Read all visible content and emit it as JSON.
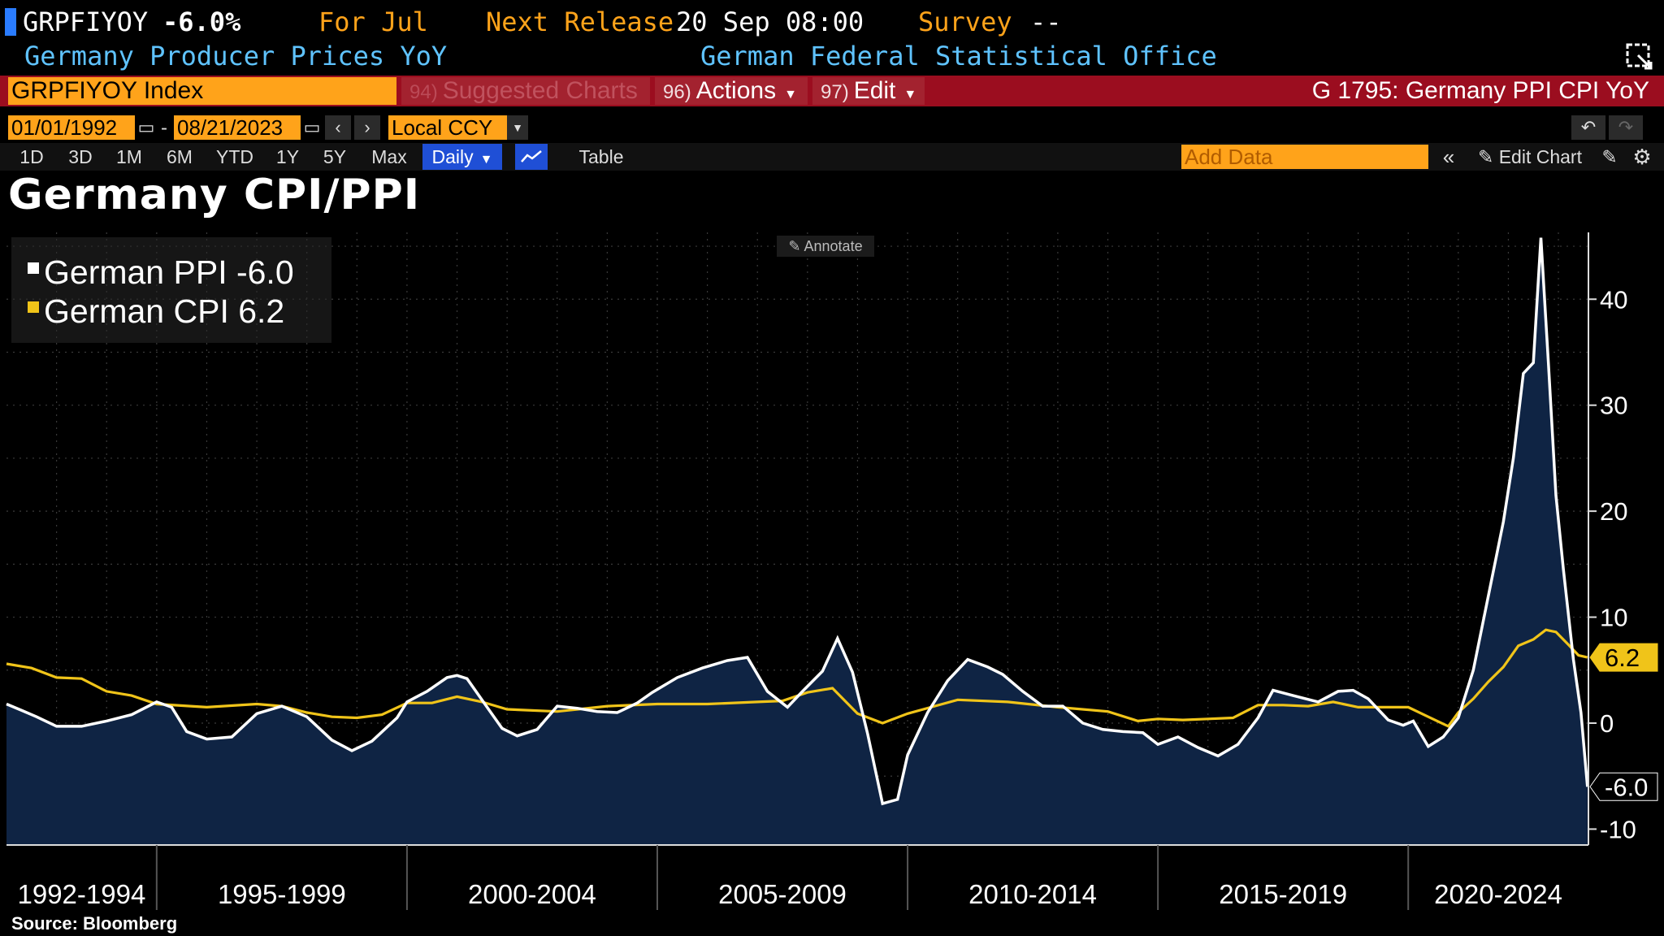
{
  "header": {
    "ticker": "GRPFIYOY",
    "value": "-6.0%",
    "for_label": "For Jul",
    "next_release_label": "Next Release",
    "next_release_value": "20 Sep 08:00",
    "survey_label": "Survey",
    "survey_value": "--",
    "description": "Germany Producer Prices YoY",
    "source_org": "German Federal Statistical Office"
  },
  "command_bar": {
    "security": "GRPFIYOY Index",
    "suggested_num": "94)",
    "suggested_label": "Suggested Charts",
    "actions_num": "96)",
    "actions_label": "Actions",
    "edit_num": "97)",
    "edit_label": "Edit",
    "chart_id": "G 1795: Germany PPI CPI YoY"
  },
  "date_row": {
    "start": "01/01/1992",
    "end": "08/21/2023",
    "separator": "-",
    "currency": "Local CCY"
  },
  "period_row": {
    "periods": [
      "1D",
      "3D",
      "1M",
      "6M",
      "YTD",
      "1Y",
      "5Y",
      "Max"
    ],
    "frequency": "Daily",
    "table_label": "Table",
    "add_data_placeholder": "Add Data",
    "edit_chart_label": "Edit Chart"
  },
  "colors": {
    "ppi": "#ffffff",
    "cpi": "#f0c419",
    "area": "#0f2444",
    "accent": "#ffa31a",
    "bar_red": "#9b0d1f"
  },
  "annotate_label": "Annotate",
  "source": "Source: Bloomberg",
  "chart_data": {
    "type": "line",
    "title": "Germany CPI/PPI",
    "x_range": [
      1992.0,
      2023.6
    ],
    "ylim": [
      -11.5,
      46
    ],
    "yticks": [
      -10,
      0,
      10,
      20,
      30,
      40
    ],
    "x_period_labels": [
      {
        "label": "1992-1994",
        "start": 1992.0,
        "end": 1995.0
      },
      {
        "label": "1995-1999",
        "start": 1995.0,
        "end": 2000.0
      },
      {
        "label": "2000-2004",
        "start": 2000.0,
        "end": 2005.0
      },
      {
        "label": "2005-2009",
        "start": 2005.0,
        "end": 2010.0
      },
      {
        "label": "2010-2014",
        "start": 2010.0,
        "end": 2015.0
      },
      {
        "label": "2015-2019",
        "start": 2015.0,
        "end": 2020.0
      },
      {
        "label": "2020-2024",
        "start": 2020.0,
        "end": 2023.6
      }
    ],
    "legend_position": "top-left",
    "series": [
      {
        "name": "German PPI",
        "last_label": "German PPI -6.0",
        "last_value": -6.0,
        "last_value_label": "-6.0",
        "color": "#ffffff",
        "filled": true,
        "points": [
          [
            1992.0,
            1.8
          ],
          [
            1992.3,
            1.2
          ],
          [
            1992.6,
            0.6
          ],
          [
            1993.0,
            -0.3
          ],
          [
            1993.5,
            -0.3
          ],
          [
            1994.0,
            0.2
          ],
          [
            1994.5,
            0.8
          ],
          [
            1995.0,
            2.0
          ],
          [
            1995.3,
            1.5
          ],
          [
            1995.6,
            -0.8
          ],
          [
            1996.0,
            -1.5
          ],
          [
            1996.5,
            -1.3
          ],
          [
            1997.0,
            0.9
          ],
          [
            1997.5,
            1.6
          ],
          [
            1998.0,
            0.6
          ],
          [
            1998.5,
            -1.6
          ],
          [
            1998.9,
            -2.6
          ],
          [
            1999.3,
            -1.7
          ],
          [
            1999.8,
            0.5
          ],
          [
            2000.0,
            2.0
          ],
          [
            2000.4,
            3.0
          ],
          [
            2000.8,
            4.3
          ],
          [
            2001.0,
            4.5
          ],
          [
            2001.2,
            4.2
          ],
          [
            2001.6,
            1.5
          ],
          [
            2001.9,
            -0.5
          ],
          [
            2002.2,
            -1.2
          ],
          [
            2002.6,
            -0.6
          ],
          [
            2003.0,
            1.6
          ],
          [
            2003.4,
            1.4
          ],
          [
            2003.8,
            1.1
          ],
          [
            2004.2,
            1.0
          ],
          [
            2004.6,
            1.9
          ],
          [
            2004.9,
            2.9
          ],
          [
            2005.4,
            4.3
          ],
          [
            2005.9,
            5.2
          ],
          [
            2006.4,
            5.9
          ],
          [
            2006.8,
            6.2
          ],
          [
            2007.2,
            3.0
          ],
          [
            2007.6,
            1.5
          ],
          [
            2007.9,
            3.0
          ],
          [
            2008.3,
            4.9
          ],
          [
            2008.6,
            8.0
          ],
          [
            2008.9,
            4.8
          ],
          [
            2009.2,
            -1.0
          ],
          [
            2009.5,
            -7.6
          ],
          [
            2009.8,
            -7.2
          ],
          [
            2010.0,
            -3.0
          ],
          [
            2010.4,
            1.0
          ],
          [
            2010.8,
            4.0
          ],
          [
            2011.2,
            6.0
          ],
          [
            2011.6,
            5.3
          ],
          [
            2011.9,
            4.6
          ],
          [
            2012.3,
            3.0
          ],
          [
            2012.7,
            1.6
          ],
          [
            2013.1,
            1.6
          ],
          [
            2013.5,
            0.0
          ],
          [
            2013.9,
            -0.6
          ],
          [
            2014.3,
            -0.8
          ],
          [
            2014.7,
            -0.9
          ],
          [
            2015.0,
            -2.0
          ],
          [
            2015.4,
            -1.3
          ],
          [
            2015.8,
            -2.3
          ],
          [
            2016.2,
            -3.1
          ],
          [
            2016.6,
            -2.0
          ],
          [
            2017.0,
            0.5
          ],
          [
            2017.3,
            3.1
          ],
          [
            2017.7,
            2.6
          ],
          [
            2018.2,
            2.0
          ],
          [
            2018.6,
            3.0
          ],
          [
            2018.9,
            3.1
          ],
          [
            2019.2,
            2.3
          ],
          [
            2019.6,
            0.3
          ],
          [
            2019.9,
            -0.2
          ],
          [
            2020.1,
            0.2
          ],
          [
            2020.4,
            -2.2
          ],
          [
            2020.7,
            -1.3
          ],
          [
            2021.0,
            0.5
          ],
          [
            2021.3,
            5.0
          ],
          [
            2021.6,
            12.0
          ],
          [
            2021.9,
            19.0
          ],
          [
            2022.1,
            25.0
          ],
          [
            2022.3,
            33.0
          ],
          [
            2022.5,
            34.0
          ],
          [
            2022.65,
            45.8
          ],
          [
            2022.8,
            34.0
          ],
          [
            2022.95,
            21.5
          ],
          [
            2023.1,
            14.5
          ],
          [
            2023.3,
            6.0
          ],
          [
            2023.45,
            1.0
          ],
          [
            2023.58,
            -6.0
          ]
        ]
      },
      {
        "name": "German CPI",
        "last_label": "German CPI 6.2",
        "last_value": 6.2,
        "last_value_label": "6.2",
        "color": "#f0c419",
        "filled": false,
        "points": [
          [
            1992.0,
            5.6
          ],
          [
            1992.5,
            5.2
          ],
          [
            1993.0,
            4.3
          ],
          [
            1993.5,
            4.2
          ],
          [
            1994.0,
            3.0
          ],
          [
            1994.5,
            2.6
          ],
          [
            1995.0,
            1.8
          ],
          [
            1996.0,
            1.5
          ],
          [
            1997.0,
            1.8
          ],
          [
            1997.5,
            1.6
          ],
          [
            1998.0,
            1.0
          ],
          [
            1998.5,
            0.6
          ],
          [
            1999.0,
            0.5
          ],
          [
            1999.5,
            0.8
          ],
          [
            2000.0,
            1.9
          ],
          [
            2000.5,
            1.9
          ],
          [
            2001.0,
            2.5
          ],
          [
            2001.5,
            2.0
          ],
          [
            2002.0,
            1.3
          ],
          [
            2003.0,
            1.1
          ],
          [
            2004.0,
            1.6
          ],
          [
            2005.0,
            1.8
          ],
          [
            2006.0,
            1.8
          ],
          [
            2007.0,
            2.0
          ],
          [
            2007.5,
            2.1
          ],
          [
            2008.0,
            2.9
          ],
          [
            2008.5,
            3.3
          ],
          [
            2009.0,
            0.9
          ],
          [
            2009.5,
            0.0
          ],
          [
            2010.0,
            0.9
          ],
          [
            2011.0,
            2.2
          ],
          [
            2012.0,
            2.0
          ],
          [
            2013.0,
            1.5
          ],
          [
            2014.0,
            1.1
          ],
          [
            2014.6,
            0.2
          ],
          [
            2015.0,
            0.4
          ],
          [
            2015.5,
            0.3
          ],
          [
            2016.0,
            0.4
          ],
          [
            2016.5,
            0.5
          ],
          [
            2017.0,
            1.7
          ],
          [
            2017.5,
            1.7
          ],
          [
            2018.0,
            1.6
          ],
          [
            2018.5,
            2.0
          ],
          [
            2019.0,
            1.5
          ],
          [
            2019.5,
            1.5
          ],
          [
            2020.0,
            1.5
          ],
          [
            2020.4,
            0.6
          ],
          [
            2020.8,
            -0.3
          ],
          [
            2021.0,
            1.0
          ],
          [
            2021.3,
            2.3
          ],
          [
            2021.6,
            3.9
          ],
          [
            2021.9,
            5.3
          ],
          [
            2022.2,
            7.3
          ],
          [
            2022.5,
            7.9
          ],
          [
            2022.75,
            8.8
          ],
          [
            2022.95,
            8.6
          ],
          [
            2023.2,
            7.4
          ],
          [
            2023.4,
            6.4
          ],
          [
            2023.58,
            6.2
          ]
        ]
      }
    ]
  }
}
